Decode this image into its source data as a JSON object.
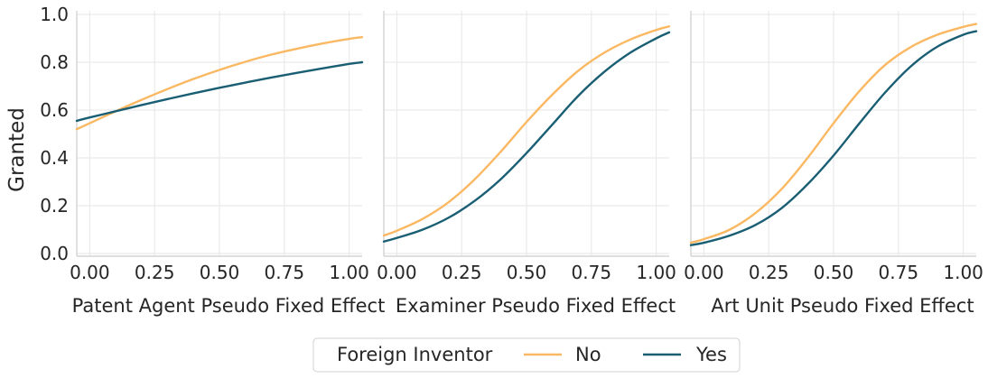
{
  "chart_data": {
    "type": "line",
    "ylabel": "Granted",
    "ylim": [
      0.0,
      1.0
    ],
    "yticks": [
      "0.0",
      "0.2",
      "0.4",
      "0.6",
      "0.8",
      "1.0"
    ],
    "xticks": [
      "0.00",
      "0.25",
      "0.50",
      "0.75",
      "1.00"
    ],
    "grid": true,
    "legend": {
      "title": "Foreign Inventor",
      "placement": "bottom-center",
      "entries": [
        {
          "label": "No",
          "color": "#fbb862"
        },
        {
          "label": "Yes",
          "color": "#1a5e74"
        }
      ]
    },
    "panels": [
      {
        "xlabel": "Patent Agent Pseudo Fixed Effect",
        "xlim": [
          -0.05,
          1.05
        ],
        "series": [
          {
            "name": "No",
            "color": "#fbb862",
            "x": [
              -0.05,
              0.0,
              0.1,
              0.2,
              0.3,
              0.4,
              0.5,
              0.6,
              0.7,
              0.8,
              0.9,
              1.0,
              1.05
            ],
            "y": [
              0.52,
              0.545,
              0.595,
              0.643,
              0.688,
              0.73,
              0.768,
              0.802,
              0.832,
              0.857,
              0.879,
              0.898,
              0.905
            ]
          },
          {
            "name": "Yes",
            "color": "#1a5e74",
            "x": [
              -0.05,
              0.0,
              0.1,
              0.2,
              0.3,
              0.4,
              0.5,
              0.6,
              0.7,
              0.8,
              0.9,
              1.0,
              1.05
            ],
            "y": [
              0.555,
              0.569,
              0.595,
              0.621,
              0.646,
              0.67,
              0.693,
              0.715,
              0.736,
              0.756,
              0.775,
              0.793,
              0.8
            ]
          }
        ]
      },
      {
        "xlabel": "Examiner Pseudo Fixed Effect",
        "xlim": [
          -0.05,
          1.05
        ],
        "series": [
          {
            "name": "No",
            "color": "#fbb862",
            "x": [
              -0.05,
              0.0,
              0.1,
              0.2,
              0.3,
              0.4,
              0.5,
              0.6,
              0.7,
              0.8,
              0.9,
              1.0,
              1.05
            ],
            "y": [
              0.075,
              0.095,
              0.145,
              0.215,
              0.31,
              0.425,
              0.55,
              0.665,
              0.765,
              0.84,
              0.895,
              0.935,
              0.95
            ]
          },
          {
            "name": "Yes",
            "color": "#1a5e74",
            "x": [
              -0.05,
              0.0,
              0.1,
              0.2,
              0.3,
              0.4,
              0.5,
              0.6,
              0.7,
              0.8,
              0.9,
              1.0,
              1.05
            ],
            "y": [
              0.05,
              0.065,
              0.1,
              0.15,
              0.22,
              0.31,
              0.42,
              0.54,
              0.66,
              0.76,
              0.84,
              0.9,
              0.925
            ]
          }
        ]
      },
      {
        "xlabel": "Art Unit Pseudo Fixed Effect",
        "xlim": [
          -0.05,
          1.05
        ],
        "series": [
          {
            "name": "No",
            "color": "#fbb862",
            "x": [
              -0.05,
              0.0,
              0.1,
              0.2,
              0.3,
              0.4,
              0.5,
              0.6,
              0.7,
              0.8,
              0.9,
              1.0,
              1.05
            ],
            "y": [
              0.045,
              0.06,
              0.1,
              0.17,
              0.27,
              0.4,
              0.545,
              0.68,
              0.79,
              0.865,
              0.915,
              0.948,
              0.96
            ]
          },
          {
            "name": "Yes",
            "color": "#1a5e74",
            "x": [
              -0.05,
              0.0,
              0.1,
              0.2,
              0.3,
              0.4,
              0.5,
              0.6,
              0.7,
              0.8,
              0.9,
              1.0,
              1.05
            ],
            "y": [
              0.035,
              0.045,
              0.075,
              0.12,
              0.19,
              0.29,
              0.41,
              0.545,
              0.675,
              0.785,
              0.865,
              0.915,
              0.93
            ]
          }
        ]
      }
    ]
  }
}
